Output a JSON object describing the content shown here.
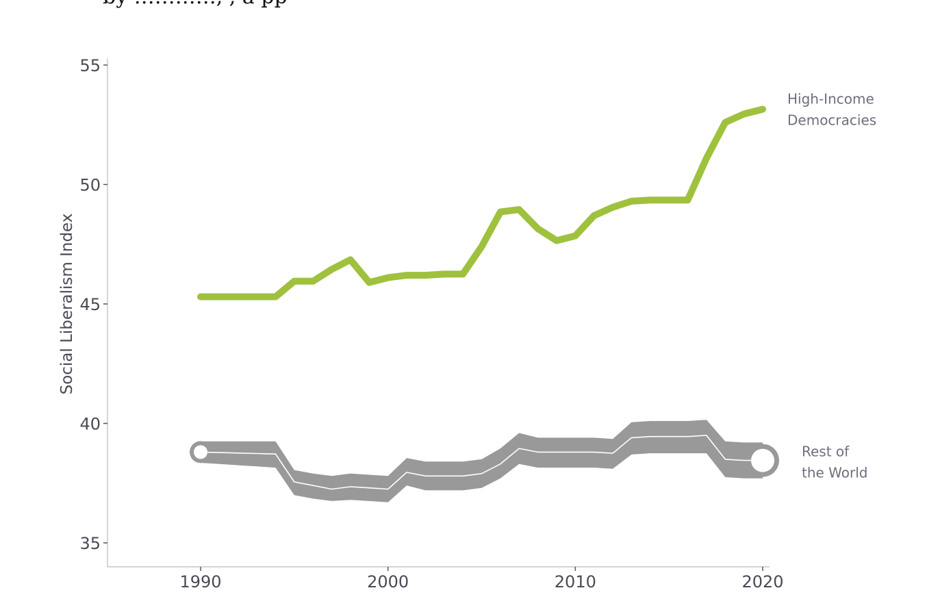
{
  "page": {
    "top_text": "by …………, , a pp"
  },
  "chart_data": {
    "type": "line",
    "title": "",
    "xlabel": "",
    "ylabel": "Social Liberalism Index",
    "xlim": [
      1990,
      2020
    ],
    "ylim": [
      35,
      55
    ],
    "x_ticks": [
      1990,
      2000,
      2010,
      2020
    ],
    "y_ticks": [
      35,
      40,
      45,
      50,
      55
    ],
    "grid": false,
    "legend": "direct-labels-right",
    "colors": {
      "high_income": "#9fc13e",
      "rest": "#999999",
      "rest_center": "#ffffff",
      "axis": "#bbbbbb"
    },
    "x": [
      1990,
      1991,
      1992,
      1993,
      1994,
      1995,
      1996,
      1997,
      1998,
      1999,
      2000,
      2001,
      2002,
      2003,
      2004,
      2005,
      2006,
      2007,
      2008,
      2009,
      2010,
      2011,
      2012,
      2013,
      2014,
      2015,
      2016,
      2017,
      2018,
      2019,
      2020
    ],
    "series": [
      {
        "name_lines": [
          "High-Income",
          "Democracies"
        ],
        "values": [
          45.3,
          45.3,
          45.3,
          45.3,
          45.3,
          45.95,
          45.95,
          46.45,
          46.85,
          45.9,
          46.1,
          46.2,
          46.2,
          46.25,
          46.25,
          47.4,
          48.85,
          48.95,
          48.15,
          47.65,
          47.85,
          48.7,
          49.05,
          49.3,
          49.35,
          49.35,
          49.35,
          51.1,
          52.6,
          52.95,
          53.15
        ]
      },
      {
        "name_lines": [
          "Rest of",
          "the World"
        ],
        "values": [
          38.8,
          38.78,
          38.76,
          38.74,
          38.72,
          37.55,
          37.4,
          37.25,
          37.35,
          37.3,
          37.25,
          37.95,
          37.8,
          37.8,
          37.8,
          37.9,
          38.3,
          38.95,
          38.8,
          38.8,
          38.8,
          38.8,
          38.75,
          39.4,
          39.45,
          39.45,
          39.45,
          39.5,
          38.5,
          38.45,
          38.45
        ],
        "band_upper": [
          39.25,
          39.25,
          39.25,
          39.25,
          39.25,
          38.05,
          37.9,
          37.8,
          37.9,
          37.85,
          37.8,
          38.55,
          38.4,
          38.4,
          38.4,
          38.5,
          38.95,
          39.6,
          39.4,
          39.4,
          39.4,
          39.4,
          39.35,
          40.05,
          40.1,
          40.1,
          40.1,
          40.15,
          39.25,
          39.2,
          39.2
        ],
        "band_lower": [
          38.35,
          38.3,
          38.25,
          38.2,
          38.15,
          37.0,
          36.85,
          36.75,
          36.8,
          36.75,
          36.7,
          37.4,
          37.2,
          37.2,
          37.2,
          37.3,
          37.7,
          38.3,
          38.15,
          38.15,
          38.15,
          38.15,
          38.1,
          38.7,
          38.75,
          38.75,
          38.75,
          38.75,
          37.75,
          37.7,
          37.7
        ]
      }
    ]
  }
}
